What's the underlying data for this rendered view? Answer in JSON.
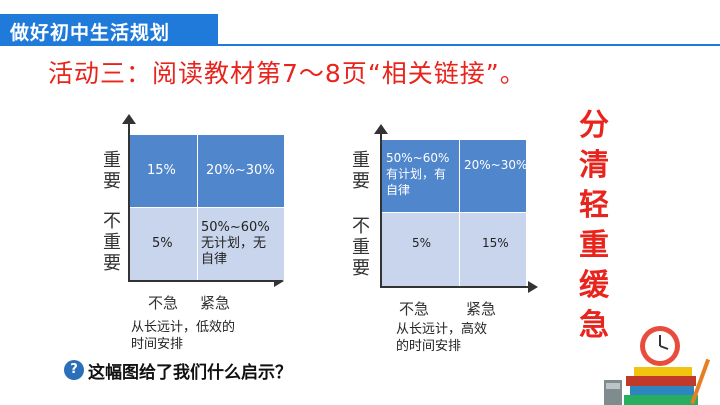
{
  "header": {
    "title": "做好初中生活规划",
    "color": "#1f7ad9"
  },
  "activity_title": "活动三：阅读教材第7～8页“相关链接”。",
  "side_title_chars": [
    "分",
    "清",
    "轻",
    "重",
    "缓",
    "急"
  ],
  "left_matrix": {
    "y_top_chars": [
      "重",
      "要"
    ],
    "y_bottom_chars": [
      "不",
      "重",
      "要"
    ],
    "x_left": "不急",
    "x_right": "紧急",
    "cells": {
      "top_left": "15%",
      "top_right": "20%~30%",
      "bottom_left": "5%",
      "bottom_right": [
        "50%~60%",
        "无计划，无",
        "自律"
      ]
    },
    "caption": [
      "从长远计，低效的",
      "时间安排"
    ]
  },
  "right_matrix": {
    "y_top_chars": [
      "重",
      "要"
    ],
    "y_bottom_chars": [
      "不",
      "重",
      "要"
    ],
    "x_left": "不急",
    "x_right": "紧急",
    "cells": {
      "top_left": [
        "50%~60%",
        "有计划，有",
        "自律"
      ],
      "top_right": "20%~30%",
      "bottom_left": "5%",
      "bottom_right": "15%"
    },
    "caption": [
      "从长远计，高效",
      "的时间安排"
    ]
  },
  "question": "这幅图给了我们什么启示？",
  "icons": {
    "question": "question-circle-icon",
    "decoration": "books-clock-decoration"
  }
}
